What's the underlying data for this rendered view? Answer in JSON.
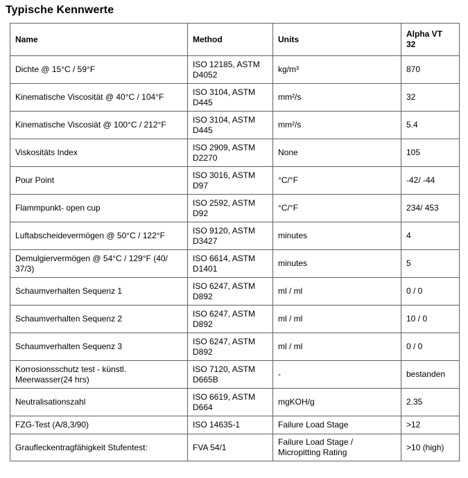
{
  "page": {
    "title": "Typische Kennwerte"
  },
  "table": {
    "headers": [
      "Name",
      "Method",
      "Units",
      "Alpha VT 32"
    ],
    "rows": [
      {
        "name": "Dichte @ 15°C / 59°F",
        "method": "ISO 12185, ASTM D4052",
        "units": "kg/m³",
        "value": "870"
      },
      {
        "name": "Kinematische Viscosität @ 40°C / 104°F",
        "method": "ISO 3104, ASTM D445",
        "units": "mm²/s",
        "value": "32"
      },
      {
        "name": "Kinematische Viscosiät @ 100°C / 212°F",
        "method": "ISO 3104, ASTM D445",
        "units": "mm²/s",
        "value": "5.4"
      },
      {
        "name": "Viskositäts Index",
        "method": "ISO 2909, ASTM D2270",
        "units": "None",
        "value": "105"
      },
      {
        "name": "Pour Point",
        "method": "ISO 3016, ASTM D97",
        "units": "°C/°F",
        "value": "-42/ -44"
      },
      {
        "name": "Flammpunkt- open cup",
        "method": "ISO 2592, ASTM D92",
        "units": "°C/°F",
        "value": "234/ 453"
      },
      {
        "name": "Luftabscheidevermögen @ 50°C / 122°F",
        "method": "ISO 9120, ASTM D3427",
        "units": "minutes",
        "value": "4"
      },
      {
        "name": "Demulgiervermögen @ 54°C / 129°F (40/ 37/3)",
        "method": "ISO 6614, ASTM D1401",
        "units": "minutes",
        "value": "5"
      },
      {
        "name": "Schaumverhalten Sequenz 1",
        "method": "ISO 6247, ASTM D892",
        "units": "ml / ml",
        "value": "0 / 0"
      },
      {
        "name": "Schaumverhalten Sequenz 2",
        "method": "ISO 6247, ASTM D892",
        "units": "ml / ml",
        "value": "10 / 0"
      },
      {
        "name": "Schaumverhalten Sequenz 3",
        "method": "ISO 6247, ASTM D892",
        "units": "ml / ml",
        "value": "0 / 0"
      },
      {
        "name": "Korrosionsschutz test - künstl. Meerwasser(24 hrs)",
        "method": "ISO 7120, ASTM D665B",
        "units": "-",
        "value": "bestanden"
      },
      {
        "name": "Neutralisationszahl",
        "method": "ISO 6619, ASTM D664",
        "units": "mgKOH/g",
        "value": "2.35"
      },
      {
        "name": "FZG-Test (A/8,3/90)",
        "method": "ISO 14635-1",
        "units": "Failure Load Stage",
        "value": ">12"
      },
      {
        "name": "Graufleckentragfähigkeit Stufentest:",
        "method": "FVA 54/1",
        "units": "Failure Load Stage / Micropitting Rating",
        "value": ">10 (high)"
      }
    ]
  },
  "colors": {
    "table_border": "#606060",
    "text": "#000000",
    "background": "#ffffff"
  }
}
